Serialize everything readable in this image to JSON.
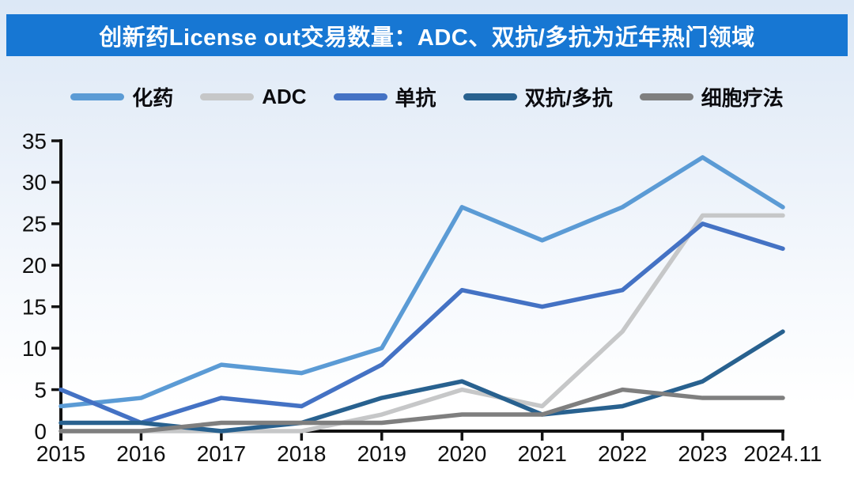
{
  "title": {
    "text": "创新药License out交易数量：ADC、双抗/多抗为近年热门领域",
    "bg_color": "#1777D3",
    "text_color": "#FFFFFF"
  },
  "chart_data": {
    "type": "line",
    "title": "创新药License out交易数量：ADC、双抗/多抗为近年热门领域",
    "x": [
      "2015",
      "2016",
      "2017",
      "2018",
      "2019",
      "2020",
      "2021",
      "2022",
      "2023",
      "2024.11"
    ],
    "series": [
      {
        "name": "化药",
        "color": "#5B9BD5",
        "values": [
          3,
          4,
          8,
          7,
          10,
          27,
          23,
          27,
          33,
          27
        ]
      },
      {
        "name": "ADC",
        "color": "#C6C7C8",
        "values": [
          0,
          0,
          0,
          0,
          2,
          5,
          3,
          12,
          26,
          26
        ]
      },
      {
        "name": "单抗",
        "color": "#4472C4",
        "values": [
          5,
          1,
          4,
          3,
          8,
          17,
          15,
          17,
          25,
          22
        ]
      },
      {
        "name": "双抗/多抗",
        "color": "#28618F",
        "values": [
          1,
          1,
          0,
          1,
          4,
          6,
          2,
          3,
          6,
          12
        ]
      },
      {
        "name": "细胞疗法",
        "color": "#7F7F7F",
        "values": [
          0,
          0,
          1,
          1,
          1,
          2,
          2,
          5,
          4,
          4
        ]
      }
    ],
    "xlabel": "",
    "ylabel": "",
    "ylim": [
      0,
      35
    ],
    "yticks": [
      0,
      5,
      10,
      15,
      20,
      25,
      30,
      35
    ],
    "legend_position": "top",
    "grid": false,
    "axis_color": "#121212"
  }
}
